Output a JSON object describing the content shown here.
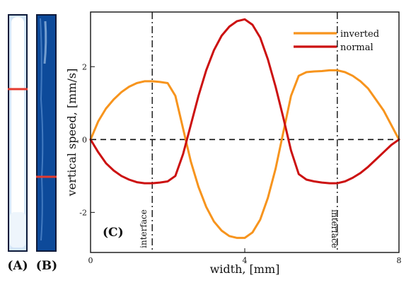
{
  "panels": {
    "a_label": "(A)",
    "b_label": "(B)",
    "c_label": "(C)"
  },
  "colors": {
    "inverted": "#f7941d",
    "normal": "#cc1111",
    "panel_a_fill": "#e6f0fa",
    "panel_b_fill": "#0d4a9a",
    "marker": "#e43a2f"
  },
  "chart_data": {
    "type": "line",
    "title": "",
    "xlabel": "width, [mm]",
    "ylabel": "vertical speed, [mm/s]",
    "xlim": [
      0,
      8
    ],
    "ylim": [
      -3.1,
      3.5
    ],
    "xticks": [
      0,
      4,
      8
    ],
    "yticks": [
      -2,
      0,
      2
    ],
    "grid": false,
    "legend_position": "top-right",
    "reference_lines": {
      "horizontal_zero": 0,
      "interfaces": [
        1.6,
        6.4
      ],
      "interface_label": "interface"
    },
    "series": [
      {
        "name": "inverted",
        "x": [
          0,
          0.2,
          0.4,
          0.6,
          0.8,
          1.0,
          1.2,
          1.4,
          1.6,
          1.8,
          2.0,
          2.2,
          2.4,
          2.6,
          2.8,
          3.0,
          3.2,
          3.4,
          3.6,
          3.8,
          4.0,
          4.2,
          4.4,
          4.6,
          4.8,
          5.0,
          5.2,
          5.4,
          5.6,
          5.8,
          6.0,
          6.2,
          6.4,
          6.6,
          6.8,
          7.0,
          7.2,
          7.4,
          7.6,
          7.8,
          8.0
        ],
        "y": [
          0,
          0.5,
          0.85,
          1.1,
          1.3,
          1.45,
          1.55,
          1.6,
          1.6,
          1.58,
          1.55,
          1.2,
          0.3,
          -0.6,
          -1.3,
          -1.85,
          -2.25,
          -2.5,
          -2.65,
          -2.7,
          -2.7,
          -2.55,
          -2.2,
          -1.6,
          -0.8,
          0.2,
          1.2,
          1.75,
          1.85,
          1.87,
          1.88,
          1.9,
          1.9,
          1.85,
          1.75,
          1.6,
          1.4,
          1.1,
          0.8,
          0.4,
          0
        ]
      },
      {
        "name": "normal",
        "x": [
          0,
          0.2,
          0.4,
          0.6,
          0.8,
          1.0,
          1.2,
          1.4,
          1.6,
          1.8,
          2.0,
          2.2,
          2.4,
          2.6,
          2.8,
          3.0,
          3.2,
          3.4,
          3.6,
          3.8,
          4.0,
          4.2,
          4.4,
          4.6,
          4.8,
          5.0,
          5.2,
          5.4,
          5.6,
          5.8,
          6.0,
          6.2,
          6.4,
          6.6,
          6.8,
          7.0,
          7.2,
          7.4,
          7.6,
          7.8,
          8.0
        ],
        "y": [
          0,
          -0.35,
          -0.65,
          -0.85,
          -1.0,
          -1.1,
          -1.17,
          -1.2,
          -1.2,
          -1.18,
          -1.15,
          -1.0,
          -0.4,
          0.4,
          1.2,
          1.9,
          2.45,
          2.85,
          3.1,
          3.25,
          3.3,
          3.15,
          2.8,
          2.2,
          1.45,
          0.6,
          -0.3,
          -0.95,
          -1.1,
          -1.15,
          -1.18,
          -1.2,
          -1.2,
          -1.15,
          -1.05,
          -0.92,
          -0.75,
          -0.55,
          -0.35,
          -0.15,
          0
        ]
      }
    ]
  }
}
